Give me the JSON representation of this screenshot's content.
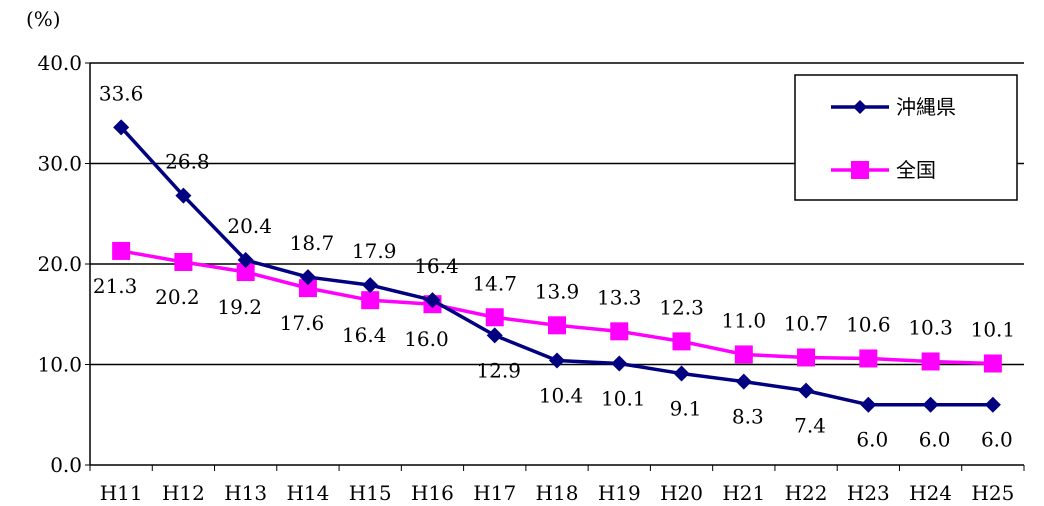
{
  "chart_data": {
    "type": "line",
    "unit_label": "(%)",
    "categories": [
      "H11",
      "H12",
      "H13",
      "H14",
      "H15",
      "H16",
      "H17",
      "H18",
      "H19",
      "H20",
      "H21",
      "H22",
      "H23",
      "H24",
      "H25"
    ],
    "series": [
      {
        "name": "沖縄県",
        "color": "#000080",
        "marker": "diamond",
        "values": [
          33.6,
          26.8,
          20.4,
          18.7,
          17.9,
          16.4,
          12.9,
          10.4,
          10.1,
          9.1,
          8.3,
          7.4,
          6.0,
          6.0,
          6.0
        ],
        "labels": [
          "33.6",
          "26.8",
          "20.4",
          "18.7",
          "17.9",
          "16.4",
          "12.9",
          "10.4",
          "10.1",
          "9.1",
          "8.3",
          "7.4",
          "6.0",
          "6.0",
          "6.0"
        ]
      },
      {
        "name": "全国",
        "color": "#FF00FF",
        "marker": "square",
        "values": [
          21.3,
          20.2,
          19.2,
          17.6,
          16.4,
          16.0,
          14.7,
          13.9,
          13.3,
          12.3,
          11.0,
          10.7,
          10.6,
          10.3,
          10.1
        ],
        "labels": [
          "21.3",
          "20.2",
          "19.2",
          "17.6",
          "16.4",
          "16.0",
          "14.7",
          "13.9",
          "13.3",
          "12.3",
          "11.0",
          "10.7",
          "10.6",
          "10.3",
          "10.1"
        ]
      }
    ],
    "ylim": [
      0,
      40
    ],
    "yticks": [
      "0.0",
      "10.0",
      "20.0",
      "30.0",
      "40.0"
    ],
    "ytick_values": [
      0,
      10,
      20,
      30,
      40
    ],
    "grid": true,
    "legend_position": "top-right"
  }
}
